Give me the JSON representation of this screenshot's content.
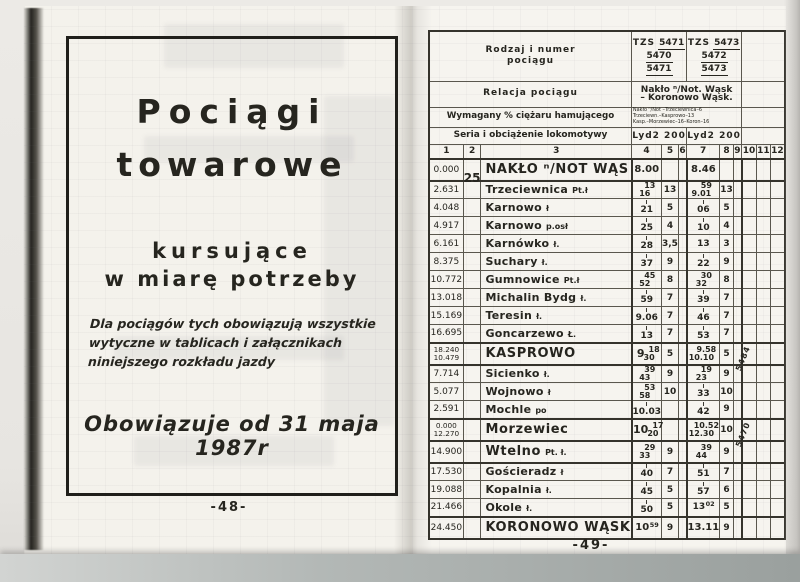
{
  "colors": {
    "paper": "#f5f3ee",
    "ink": "#26251f",
    "scan_background": "#ecebe7",
    "grid_line": "#5a574e"
  },
  "left_page": {
    "title_line1": "Pociągi",
    "title_line2": "towarowe",
    "subtitle_line1": "kursujące",
    "subtitle_line2": "w miarę potrzeby",
    "paragraph": "Dla pociągów tych obowiązują wszystkie wytyczne w tablicach i załącznikach niniejszego rozkładu jazdy",
    "valid_from": "Obowiązuje od 31 maja 1987r",
    "page_number": "-48-"
  },
  "right_page": {
    "page_number": "-49-",
    "header": {
      "row1_label_line1": "Rodzaj i numer",
      "row1_label_line2": "pociągu",
      "train_group1": {
        "prefix": "TZS",
        "numbers": [
          "5471",
          "5470",
          "5471"
        ]
      },
      "train_group2": {
        "prefix": "TZS",
        "numbers": [
          "5473",
          "5472",
          "5473"
        ]
      },
      "row2_label": "Relacja pociągu",
      "relation_line1": "Nakło ⁿ/Not. Wąsk",
      "relation_line2": "– Koronowo Wąsk.",
      "row3_label": "Wymagany % ciężaru hamującego",
      "braking_lines": [
        "Nakło ⁿ/Not –Trzeciewnica–6",
        "Trzeciewn.–Kasprowo–13",
        "Kasp.–Morzewiec–16–Koron–16"
      ],
      "row4_label": "Seria i obciążenie lokomotywy",
      "loco1": "Lyd2 200",
      "loco2": "Lyd2 200",
      "col_numbers": [
        "1",
        "2",
        "3",
        "4",
        "5",
        "6",
        "7",
        "8",
        "9",
        "10",
        "11",
        "12"
      ]
    },
    "rows": [
      {
        "km": "0.000",
        "no": "25",
        "station": "NAKŁO ⁿ/NOT WĄS",
        "cls": "big",
        "t1": {
          "single": "8.00"
        },
        "r1": "",
        "t2": {
          "single": "8.46"
        },
        "r2": ""
      },
      {
        "km": "2.631",
        "station": "Trzeciewnica",
        "suf": "Pt.ł",
        "t1": {
          "top": "13",
          "bot": "16"
        },
        "r1": "13",
        "t2": {
          "top": "59",
          "bot": "9.01"
        },
        "r2": "13"
      },
      {
        "km": "4.048",
        "station": "Karnowo",
        "suf": "ł",
        "t1": {
          "single": "21",
          "pass": true
        },
        "r1": "5",
        "t2": {
          "single": "06",
          "pass": true
        },
        "r2": "5"
      },
      {
        "km": "4.917",
        "station": "Karnowo",
        "suf": "p.osł",
        "t1": {
          "single": "25",
          "pass": true
        },
        "r1": "4",
        "t2": {
          "single": "10",
          "pass": true
        },
        "r2": "4"
      },
      {
        "km": "6.161",
        "station": "Karnówko",
        "suf": "ł.",
        "t1": {
          "single": "28",
          "pass": true
        },
        "r1": "3,5",
        "t2": {
          "single": "13"
        },
        "r2": "3"
      },
      {
        "km": "8.375",
        "station": "Suchary",
        "suf": "ł.",
        "t1": {
          "single": "37",
          "pass": true
        },
        "r1": "9",
        "t2": {
          "single": "22",
          "pass": true
        },
        "r2": "9"
      },
      {
        "km": "10.772",
        "station": "Gumnowice",
        "suf": "Pt.ł",
        "t1": {
          "top": "45",
          "bot": "52"
        },
        "r1": "8",
        "t2": {
          "top": "30",
          "bot": "32"
        },
        "r2": "8"
      },
      {
        "km": "13.018",
        "station": "Michalin Bydg",
        "suf": "ł.",
        "t1": {
          "single": "59",
          "pass": true
        },
        "r1": "7",
        "t2": {
          "single": "39",
          "pass": true
        },
        "r2": "7"
      },
      {
        "km": "15.169",
        "station": "Teresin",
        "suf": "ł.",
        "t1": {
          "single": "9.06",
          "pass": true
        },
        "r1": "7",
        "t2": {
          "single": "46",
          "pass": true
        },
        "r2": "7"
      },
      {
        "km": "16.695",
        "station": "Goncarzewo",
        "suf": "Ł.",
        "t1": {
          "single": "13",
          "pass": true
        },
        "r1": "7",
        "t2": {
          "single": "53",
          "pass": true
        },
        "r2": "7"
      },
      {
        "km": "18.240",
        "km2": "10.479",
        "station": "KASPROWO",
        "cls": "big",
        "t1": {
          "hour": "9",
          "top": "18",
          "bot": "30"
        },
        "r1": "5",
        "t2": {
          "top": "9.58",
          "bot": "10.10"
        },
        "r2": "5",
        "v2": "5484"
      },
      {
        "km": "7.714",
        "station": "Sicienko",
        "suf": "ł.",
        "t1": {
          "top": "39",
          "bot": "43"
        },
        "r1": "9",
        "t2": {
          "top": "19",
          "bot": "23"
        },
        "r2": "9"
      },
      {
        "km": "5.077",
        "station": "Wojnowo",
        "suf": "ł",
        "t1": {
          "top": "53",
          "bot": "58"
        },
        "r1": "10",
        "t2": {
          "single": "33",
          "pass": true
        },
        "r2": "10"
      },
      {
        "km": "2.591",
        "station": "Mochle",
        "suf": "po",
        "t1": {
          "single": "10.03",
          "pass": true
        },
        "r1": "",
        "t2": {
          "single": "42",
          "pass": true
        },
        "r2": "9"
      },
      {
        "km": "0.000",
        "km2": "12.270",
        "station": "Morzewiec",
        "cls": "big",
        "t1": {
          "hour": "10",
          "top": "17",
          "bot": "20"
        },
        "r1": "",
        "t2": {
          "top": "10.52",
          "bot": "12.30"
        },
        "r2": "10",
        "v2": "5470"
      },
      {
        "km": "14.900",
        "station": "Wtelno",
        "suf": "Pt. ł.",
        "cls": "big",
        "t1": {
          "top": "29",
          "bot": "33"
        },
        "r1": "9",
        "t2": {
          "top": "39",
          "bot": "44"
        },
        "r2": "9"
      },
      {
        "km": "17.530",
        "station": "Gościeradz",
        "suf": "ł",
        "t1": {
          "single": "40",
          "pass": true
        },
        "r1": "7",
        "t2": {
          "single": "51",
          "pass": true
        },
        "r2": "7"
      },
      {
        "km": "19.088",
        "station": "Kopalnia",
        "suf": "ł.",
        "t1": {
          "single": "45",
          "pass": true
        },
        "r1": "5",
        "t2": {
          "single": "57",
          "pass": true
        },
        "r2": "6"
      },
      {
        "km": "21.466",
        "station": "Okole",
        "suf": "ł.",
        "t1": {
          "single": "50",
          "pass": true
        },
        "r1": "5",
        "t2": {
          "single": "13",
          "sup": "02"
        },
        "r2": "5"
      },
      {
        "km": "24.450",
        "station": "KORONOWO WĄSK",
        "cls": "big",
        "t1": {
          "single": "10",
          "sup": "59"
        },
        "r1": "9",
        "t2": {
          "single": "13.11"
        },
        "r2": "9"
      }
    ]
  }
}
